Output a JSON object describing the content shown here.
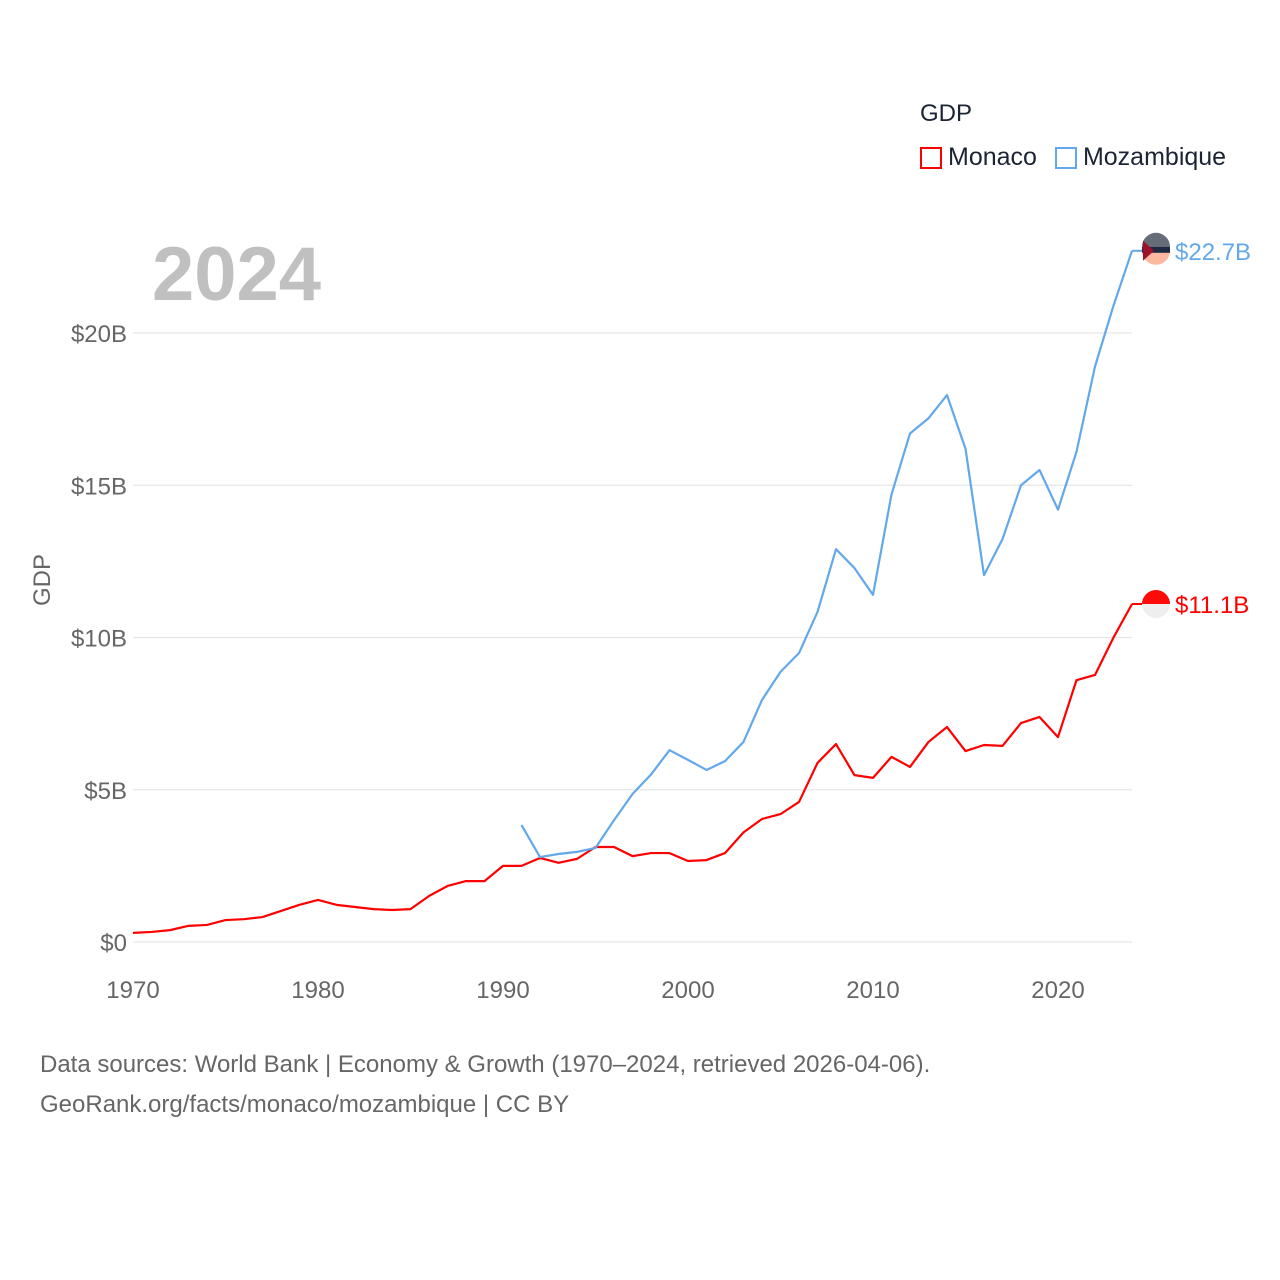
{
  "legend": {
    "title": "GDP",
    "items": [
      {
        "label": "Monaco",
        "color": "#ff0000"
      },
      {
        "label": "Mozambique",
        "color": "#63a8ea"
      }
    ]
  },
  "year_label": "2024",
  "source": {
    "line1": "Data sources: World Bank | Economy & Growth (1970–2024, retrieved 2026-04-06).",
    "line2": "GeoRank.org/facts/monaco/mozambique | CC BY"
  },
  "chart_data": {
    "type": "line",
    "title": "",
    "xlabel": "",
    "ylabel": "GDP",
    "xlim": [
      1970,
      2024
    ],
    "ylim": [
      0,
      23
    ],
    "x_ticks": [
      1970,
      1980,
      1990,
      2000,
      2010,
      2020
    ],
    "y_ticks": [
      {
        "value": 0,
        "label": "$0"
      },
      {
        "value": 5,
        "label": "$5B"
      },
      {
        "value": 10,
        "label": "$10B"
      },
      {
        "value": 15,
        "label": "$15B"
      },
      {
        "value": 20,
        "label": "$20B"
      }
    ],
    "grid": true,
    "legend_position": "top-right",
    "unit": "billion USD",
    "series": [
      {
        "name": "Monaco",
        "color": "#ff0000",
        "end_label": "$11.1B",
        "start_year": 1970,
        "values": [
          0.3,
          0.33,
          0.39,
          0.53,
          0.56,
          0.72,
          0.75,
          0.82,
          1.02,
          1.22,
          1.38,
          1.22,
          1.15,
          1.08,
          1.05,
          1.08,
          1.51,
          1.84,
          2.0,
          2.0,
          2.5,
          2.5,
          2.76,
          2.6,
          2.73,
          3.12,
          3.12,
          2.82,
          2.92,
          2.92,
          2.66,
          2.69,
          2.92,
          3.6,
          4.04,
          4.2,
          4.6,
          5.88,
          6.5,
          5.48,
          5.39,
          6.08,
          5.75,
          6.57,
          7.06,
          6.27,
          6.47,
          6.44,
          7.19,
          7.39,
          6.73,
          8.6,
          8.77,
          10.0,
          11.1
        ]
      },
      {
        "name": "Mozambique",
        "color": "#63a8ea",
        "end_label": "$22.7B",
        "start_year": 1991,
        "values": [
          3.84,
          2.79,
          2.89,
          2.96,
          3.09,
          4.0,
          4.86,
          5.5,
          6.3,
          5.98,
          5.65,
          5.94,
          6.57,
          7.95,
          8.87,
          9.49,
          10.84,
          12.9,
          12.28,
          11.4,
          14.7,
          16.7,
          17.2,
          17.96,
          16.2,
          12.05,
          13.23,
          15.0,
          15.5,
          14.2,
          16.1,
          18.9,
          20.9,
          22.7
        ]
      }
    ]
  }
}
